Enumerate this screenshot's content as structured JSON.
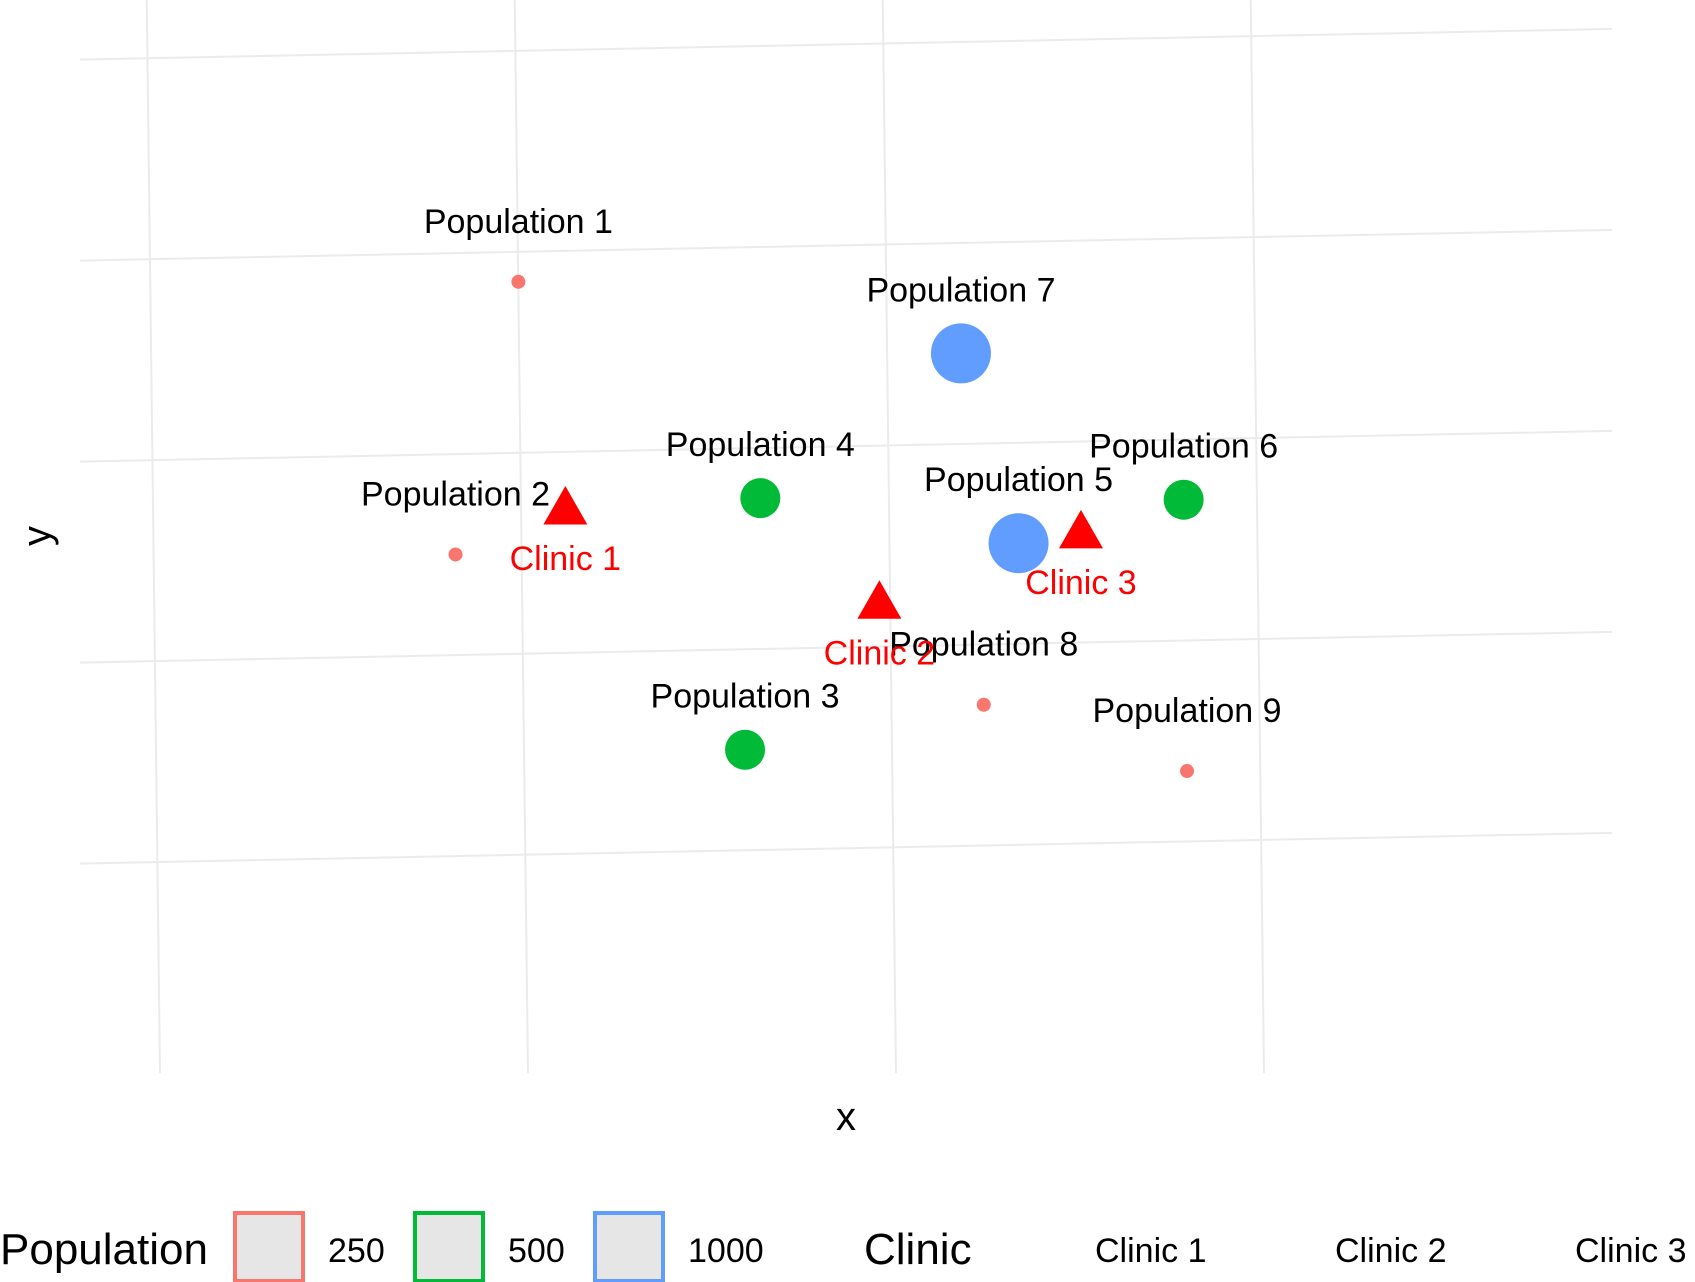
{
  "chart_data": {
    "type": "scatter",
    "title": "",
    "xlabel": "x",
    "ylabel": "y",
    "xlim": [
      0,
      4
    ],
    "ylim": [
      0,
      4.5
    ],
    "grid": true,
    "colors": {
      "pop_250": "#f8766d",
      "pop_500": "#00ba38",
      "pop_1000": "#619cff",
      "clinic": "#ff0000",
      "grid": "#ebebeb"
    },
    "populations": [
      {
        "label": "Population 1",
        "x": 1.0,
        "y": 3.85,
        "size": 250
      },
      {
        "label": "Population 2",
        "x": 0.82,
        "y": 2.5,
        "size": 250
      },
      {
        "label": "Population 3",
        "x": 1.6,
        "y": 1.5,
        "size": 500
      },
      {
        "label": "Population 4",
        "x": 1.65,
        "y": 2.75,
        "size": 500
      },
      {
        "label": "Population 5",
        "x": 2.35,
        "y": 2.5,
        "size": 1000
      },
      {
        "label": "Population 6",
        "x": 2.8,
        "y": 2.7,
        "size": 500
      },
      {
        "label": "Population 7",
        "x": 2.2,
        "y": 3.45,
        "size": 1000
      },
      {
        "label": "Population 8",
        "x": 2.25,
        "y": 1.7,
        "size": 250
      },
      {
        "label": "Population 9",
        "x": 2.8,
        "y": 1.35,
        "size": 250
      }
    ],
    "clinics": [
      {
        "label": "Clinic 1",
        "x": 1.12,
        "y": 2.72
      },
      {
        "label": "Clinic 2",
        "x": 1.97,
        "y": 2.22
      },
      {
        "label": "Clinic 3",
        "x": 2.52,
        "y": 2.55
      }
    ],
    "legend": {
      "placement": "bottom",
      "population_title": "Population",
      "population_items": [
        {
          "label": "250",
          "color": "#f8766d"
        },
        {
          "label": "500",
          "color": "#00ba38"
        },
        {
          "label": "1000",
          "color": "#619cff"
        }
      ],
      "clinic_title": "Clinic",
      "clinic_items": [
        "Clinic 1",
        "Clinic 2",
        "Clinic 3"
      ]
    }
  }
}
